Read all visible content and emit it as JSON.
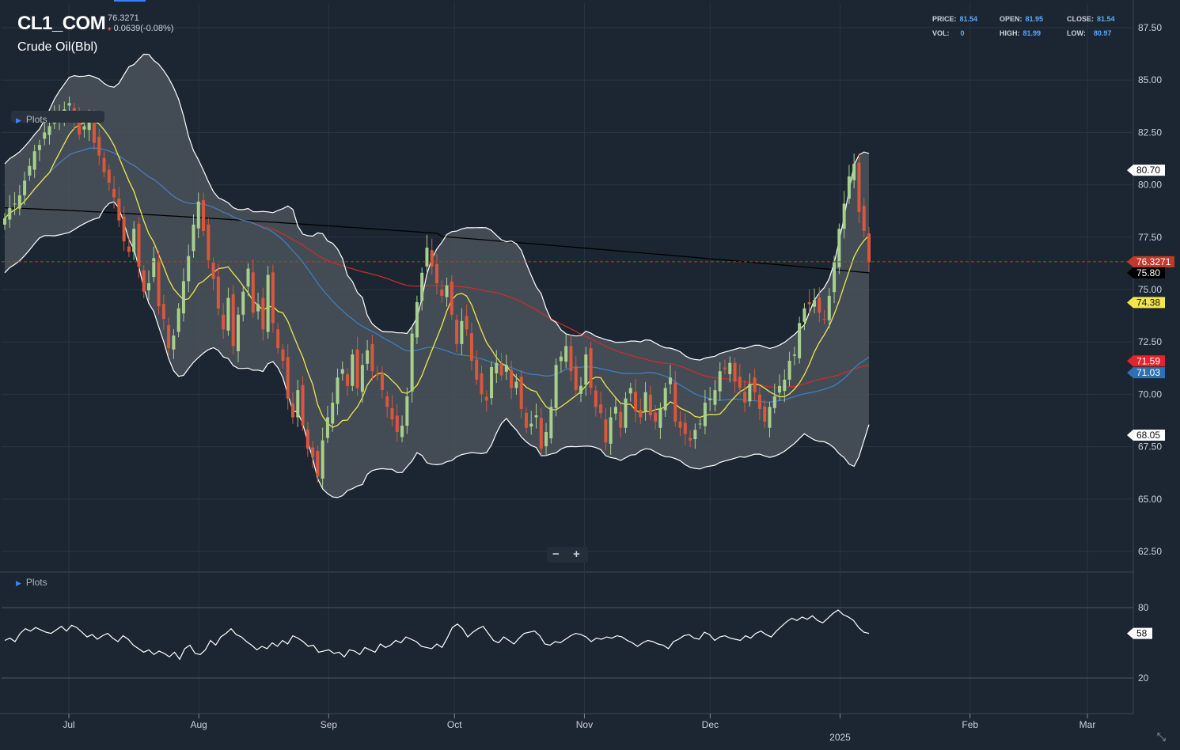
{
  "header": {
    "symbol": "CL1_COM",
    "price": "76.3271",
    "change": "0.0639(-0.08%)",
    "change_icon": "down-diamond-icon",
    "name": "Crude Oil(Bbl)"
  },
  "stats": {
    "price_label": "PRICE:",
    "price": "81.54",
    "open_label": "OPEN:",
    "open": "81.95",
    "close_label": "CLOSE:",
    "close": "81.54",
    "vol_label": "VOL:",
    "vol": "0",
    "high_label": "HIGH:",
    "high": "81.99",
    "low_label": "LOW:",
    "low": "80.97"
  },
  "panels": {
    "main_plots_label": "Plots",
    "osc_plots_label": "Plots"
  },
  "zoom": {
    "minus": "−",
    "plus": "+"
  },
  "colors": {
    "background": "#1c2632",
    "grid": "#2a3542",
    "up": "#a8d08d",
    "down": "#d9573b",
    "band_fill": "#4a535c",
    "band_line": "#ffffff",
    "ma_fast": "#f2e64b",
    "ma_mid": "#3d82c4",
    "ma_slow": "#d42a2a",
    "ma_long": "#000000",
    "current_price": "#c0392b"
  },
  "chart_data": [
    {
      "type": "candlestick",
      "title": "CL1_COM",
      "y_ticks": [
        65.0,
        67.5,
        70.0,
        72.5,
        75.0,
        77.5,
        80.0,
        82.5,
        85.0,
        87.5
      ],
      "ylim": [
        61.0,
        88.5
      ],
      "x_tick_labels": [
        "Jul",
        "Aug",
        "Sep",
        "Oct",
        "Nov",
        "Dec",
        "Feb",
        "Mar"
      ],
      "x_tick_dates": [
        "2024-07-01",
        "2024-08-01",
        "2024-09-01",
        "2024-10-01",
        "2024-11-01",
        "2024-12-01",
        "2025-02-01",
        "2025-03-01"
      ],
      "year_tick": {
        "label": "2025",
        "date": "2025-01-01"
      },
      "xlim": [
        "2024-06-14",
        "2025-03-12"
      ],
      "grid": true,
      "current_price": "76.3271",
      "closes": [
        78.4,
        78.9,
        79.1,
        79.5,
        80.2,
        80.9,
        81.6,
        81.9,
        82.5,
        82.8,
        83.3,
        83.4,
        83.6,
        83.9,
        83.1,
        82.4,
        82.8,
        83.1,
        82.0,
        81.4,
        80.6,
        80.1,
        79.4,
        78.3,
        77.3,
        76.8,
        77.9,
        76.1,
        74.9,
        75.3,
        76.5,
        74.2,
        73.6,
        72.2,
        72.8,
        74.1,
        75.4,
        76.6,
        78.1,
        79.2,
        77.8,
        76.4,
        75.5,
        74.1,
        73.1,
        74.6,
        72.3,
        73.8,
        74.9,
        76.0,
        73.9,
        74.3,
        73.1,
        75.7,
        73.4,
        72.2,
        71.6,
        69.8,
        68.9,
        70.2,
        68.5,
        67.4,
        67.0,
        66.1,
        67.8,
        68.9,
        69.6,
        70.8,
        71.2,
        70.4,
        71.9,
        70.3,
        71.4,
        72.1,
        71.1,
        70.9,
        70.2,
        69.4,
        68.8,
        68.2,
        68.5,
        69.9,
        72.9,
        74.4,
        75.8,
        77.0,
        76.1,
        75.3,
        74.7,
        75.2,
        73.8,
        72.4,
        73.5,
        73.1,
        71.6,
        70.7,
        70.0,
        69.7,
        71.3,
        71.5,
        70.9,
        71.4,
        70.3,
        70.6,
        69.3,
        68.4,
        68.6,
        69.0,
        67.4,
        68.2,
        69.4,
        71.4,
        71.8,
        72.3,
        71.1,
        70.2,
        70.4,
        71.9,
        70.3,
        69.4,
        69.1,
        67.7,
        68.9,
        69.4,
        68.4,
        69.8,
        70.3,
        69.2,
        68.9,
        70.1,
        69.0,
        68.7,
        69.3,
        70.3,
        70.8,
        68.7,
        68.4,
        68.1,
        67.8,
        68.3,
        68.6,
        69.6,
        69.8,
        70.2,
        71.1,
        71.2,
        71.5,
        70.6,
        70.3,
        69.6,
        70.5,
        70.1,
        69.3,
        68.7,
        69.4,
        69.9,
        70.4,
        70.7,
        71.6,
        71.9,
        73.4,
        74.1,
        74.3,
        74.5,
        73.9,
        73.6,
        74.7,
        76.3,
        77.9,
        79.1,
        80.4,
        81.0,
        78.7,
        77.8,
        76.3
      ],
      "series": [
        {
          "name": "Upper band",
          "markerLabel": "80.70",
          "color": "#ffffff"
        },
        {
          "name": "Lower band",
          "markerLabel": "68.05",
          "color": "#ffffff"
        },
        {
          "name": "Fast MA",
          "markerLabel": "74.38",
          "color": "#f2e64b"
        },
        {
          "name": "Slow MA",
          "markerLabel": "71.59",
          "color": "#d42a2a"
        },
        {
          "name": "Mid MA",
          "markerLabel": "71.03",
          "color": "#3d82c4"
        },
        {
          "name": "Long MA",
          "markerLabel": "75.80",
          "color": "#000000"
        }
      ]
    },
    {
      "type": "line",
      "title": "RSI",
      "y_ticks": [
        20,
        80
      ],
      "ylim": [
        0,
        100
      ],
      "last_label": "58",
      "values": [
        52,
        54,
        51,
        58,
        62,
        60,
        63,
        61,
        59,
        58,
        61,
        64,
        60,
        65,
        63,
        59,
        55,
        57,
        53,
        56,
        58,
        54,
        51,
        56,
        53,
        48,
        45,
        42,
        44,
        40,
        43,
        41,
        38,
        42,
        36,
        45,
        48,
        41,
        40,
        44,
        52,
        48,
        55,
        58,
        62,
        57,
        55,
        51,
        48,
        44,
        47,
        45,
        50,
        47,
        52,
        49,
        56,
        54,
        51,
        47,
        48,
        42,
        43,
        44,
        41,
        42,
        38,
        44,
        43,
        40,
        46,
        44,
        42,
        49,
        46,
        48,
        52,
        50,
        55,
        53,
        51,
        47,
        46,
        45,
        49,
        46,
        54,
        63,
        66,
        62,
        55,
        59,
        62,
        64,
        58,
        52,
        50,
        55,
        52,
        49,
        54,
        58,
        59,
        60,
        56,
        49,
        48,
        51,
        50,
        53,
        56,
        58,
        57,
        55,
        51,
        54,
        53,
        55,
        54,
        56,
        55,
        52,
        50,
        47,
        50,
        52,
        51,
        49,
        48,
        45,
        51,
        53,
        56,
        57,
        54,
        53,
        59,
        57,
        52,
        55,
        56,
        54,
        53,
        52,
        56,
        54,
        58,
        60,
        57,
        55,
        60,
        64,
        68,
        71,
        69,
        72,
        70,
        73,
        69,
        67,
        71,
        75,
        78,
        74,
        72,
        69,
        63,
        59,
        58
      ]
    }
  ]
}
